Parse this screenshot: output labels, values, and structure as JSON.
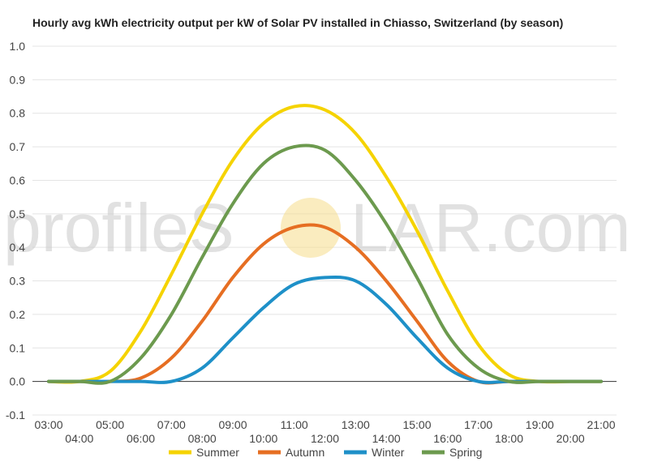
{
  "chart_data": {
    "type": "line",
    "title": "Hourly avg kWh electricity output per kW of Solar PV installed in Chiasso, Switzerland (by season)",
    "xlabel": "",
    "ylabel": "",
    "ylim": [
      -0.1,
      1.0
    ],
    "yticks": [
      "1.0",
      "0.9",
      "0.8",
      "0.7",
      "0.6",
      "0.5",
      "0.4",
      "0.3",
      "0.2",
      "0.1",
      "0.0",
      "-0.1"
    ],
    "xticks": [
      "03:00",
      "04:00",
      "05:00",
      "06:00",
      "07:00",
      "08:00",
      "09:00",
      "10:00",
      "11:00",
      "12:00",
      "13:00",
      "14:00",
      "15:00",
      "16:00",
      "17:00",
      "18:00",
      "19:00",
      "20:00",
      "21:00"
    ],
    "x": [
      3,
      4,
      5,
      6,
      7,
      8,
      9,
      10,
      11,
      12,
      13,
      14,
      15,
      16,
      17,
      18,
      19,
      20,
      21
    ],
    "grid": true,
    "legend_position": "bottom",
    "series": [
      {
        "name": "Summer",
        "color": "#f5d300",
        "values": [
          0.0,
          0.0,
          0.03,
          0.15,
          0.32,
          0.5,
          0.66,
          0.77,
          0.82,
          0.81,
          0.74,
          0.61,
          0.45,
          0.27,
          0.11,
          0.02,
          0.0,
          0.0,
          0.0
        ]
      },
      {
        "name": "Autumn",
        "color": "#e66e22",
        "values": [
          0.0,
          0.0,
          0.0,
          0.01,
          0.07,
          0.18,
          0.31,
          0.41,
          0.46,
          0.46,
          0.4,
          0.3,
          0.18,
          0.06,
          0.0,
          0.0,
          0.0,
          0.0,
          0.0
        ]
      },
      {
        "name": "Winter",
        "color": "#1e90c8",
        "values": [
          0.0,
          0.0,
          0.0,
          0.0,
          0.0,
          0.04,
          0.13,
          0.22,
          0.29,
          0.31,
          0.3,
          0.23,
          0.13,
          0.04,
          0.0,
          0.0,
          0.0,
          0.0,
          0.0
        ]
      },
      {
        "name": "Spring",
        "color": "#6c9a4e",
        "values": [
          0.0,
          0.0,
          0.0,
          0.07,
          0.2,
          0.37,
          0.53,
          0.65,
          0.7,
          0.69,
          0.6,
          0.47,
          0.31,
          0.14,
          0.04,
          0.0,
          0.0,
          0.0,
          0.0
        ]
      }
    ]
  },
  "watermark": {
    "text_left": "profileS",
    "text_right": "LAR.com",
    "sun_color": "#f6dc8a"
  }
}
